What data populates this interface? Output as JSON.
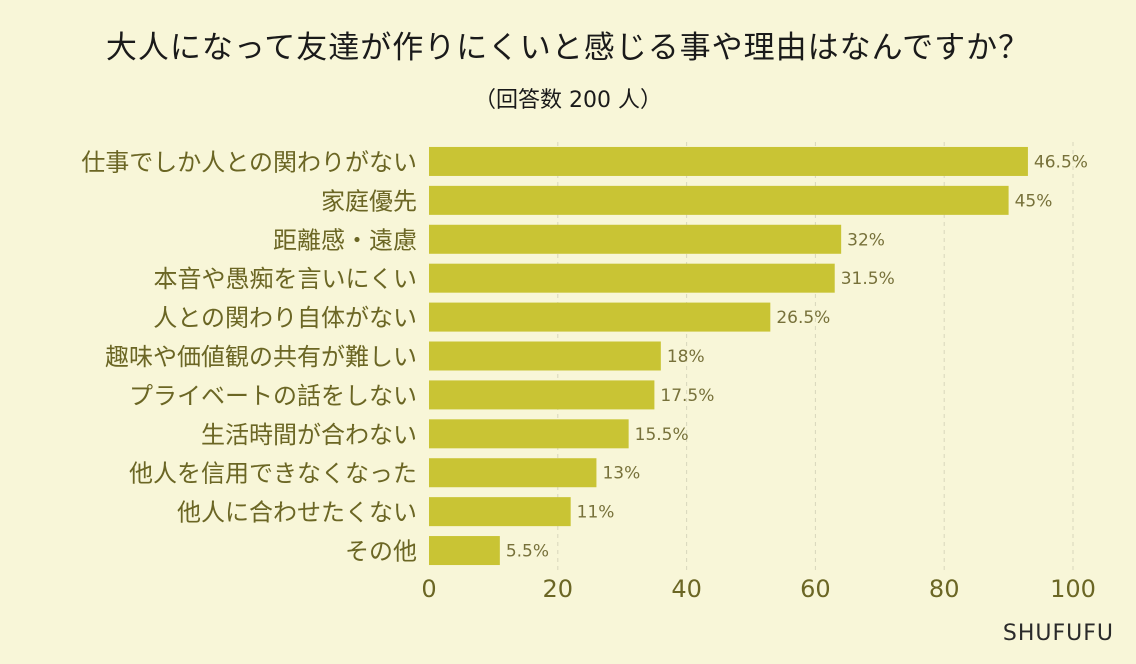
{
  "header": {
    "title": "大人になって友達が作りにくいと感じる事や理由はなんですか？",
    "subtitle": "（回答数 200 人）"
  },
  "brand": "SHUFUFU",
  "colors": {
    "background": "#f8f6d8",
    "bar": "#c9c434",
    "label": "#6b6624",
    "value_label": "#77713a",
    "grid": "#d8d6bc"
  },
  "chart_data": {
    "type": "bar",
    "orientation": "horizontal",
    "categories": [
      "仕事でしか人との関わりがない",
      "家庭優先",
      "距離感・遠慮",
      "本音や愚痴を言いにくい",
      "人との関わり自体がない",
      "趣味や価値観の共有が難しい",
      "プライベートの話をしない",
      "生活時間が合わない",
      "他人を信用できなくなった",
      "他人に合わせたくない",
      "その他"
    ],
    "values": [
      93,
      90,
      64,
      63,
      53,
      36,
      35,
      31,
      26,
      22,
      11
    ],
    "value_labels": [
      "46.5%",
      "45%",
      "32%",
      "31.5%",
      "26.5%",
      "18%",
      "17.5%",
      "15.5%",
      "13%",
      "11%",
      "5.5%"
    ],
    "xlim": [
      0,
      100
    ],
    "xticks": [
      0,
      20,
      40,
      60,
      80,
      100
    ],
    "grid": "vertical dashed"
  }
}
